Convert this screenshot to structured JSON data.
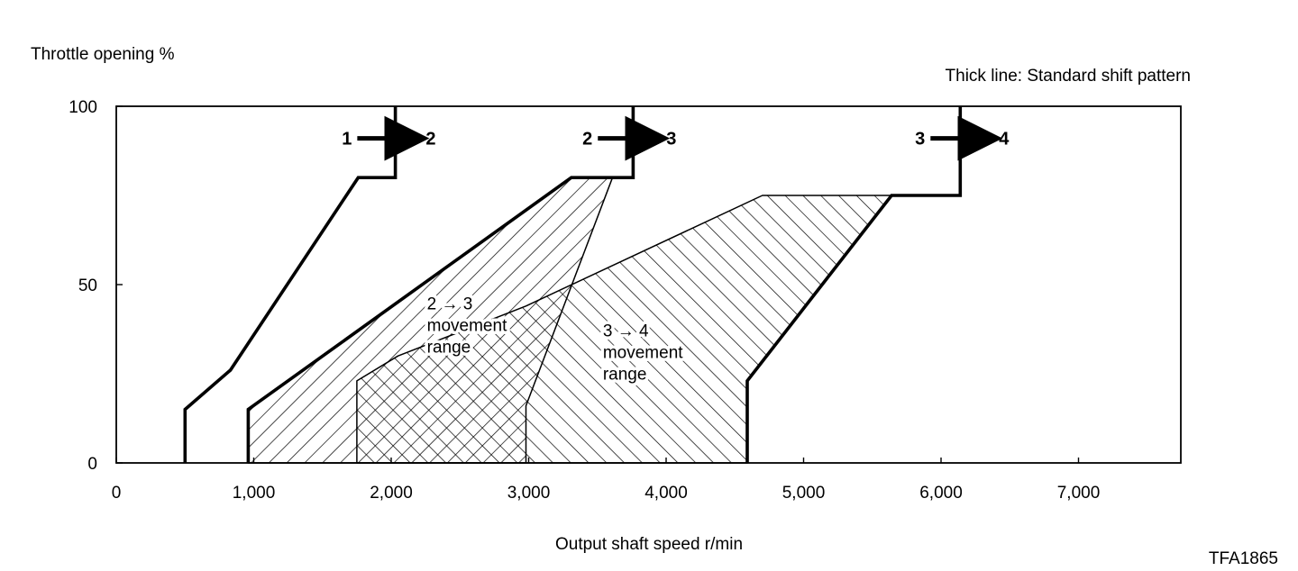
{
  "chart_data": {
    "type": "line",
    "ylabel": "Throttle opening %",
    "xlabel": "Output shaft speed r/min",
    "note": "Thick line: Standard shift pattern",
    "figure_code": "TFA1865",
    "xlim": [
      0,
      7500
    ],
    "ylim": [
      0,
      100
    ],
    "xticks": [
      {
        "value": 0,
        "label": "0"
      },
      {
        "value": 1000,
        "label": "1,000"
      },
      {
        "value": 2000,
        "label": "2,000"
      },
      {
        "value": 3000,
        "label": "3,000"
      },
      {
        "value": 4000,
        "label": "4,000"
      },
      {
        "value": 5000,
        "label": "5,000"
      },
      {
        "value": 6000,
        "label": "6,000"
      },
      {
        "value": 7000,
        "label": "7,000"
      }
    ],
    "yticks": [
      {
        "value": 0,
        "label": "0"
      },
      {
        "value": 50,
        "label": "50"
      },
      {
        "value": 100,
        "label": "100"
      }
    ],
    "series": [
      {
        "id": "shift-1-2",
        "label_from": "1",
        "label_to": "2",
        "label_at": [
          1950,
          91
        ],
        "points": [
          [
            500,
            0
          ],
          [
            500,
            15
          ],
          [
            830,
            26
          ],
          [
            1760,
            80
          ],
          [
            2030,
            80
          ],
          [
            2030,
            100
          ]
        ]
      },
      {
        "id": "shift-2-3",
        "label_from": "2",
        "label_to": "3",
        "label_at": [
          3700,
          91
        ],
        "points": [
          [
            960,
            0
          ],
          [
            960,
            15
          ],
          [
            3310,
            80
          ],
          [
            3760,
            80
          ],
          [
            3760,
            100
          ]
        ]
      },
      {
        "id": "shift-3-4",
        "label_from": "3",
        "label_to": "4",
        "label_at": [
          6120,
          91
        ],
        "points": [
          [
            4590,
            0
          ],
          [
            4590,
            23
          ],
          [
            5640,
            75
          ],
          [
            6140,
            75
          ],
          [
            6140,
            100
          ]
        ]
      }
    ],
    "regions": [
      {
        "id": "range-2-3",
        "label": [
          "2 → 3",
          "movement",
          "range"
        ],
        "label_at": [
          2260,
          43
        ],
        "hatch": "forward",
        "polygon": [
          [
            960,
            0
          ],
          [
            960,
            15
          ],
          [
            3310,
            80
          ],
          [
            3610,
            80
          ],
          [
            2980,
            16
          ],
          [
            2980,
            0
          ]
        ]
      },
      {
        "id": "range-3-4",
        "label": [
          "3 → 4",
          "movement",
          "range"
        ],
        "label_at": [
          3540,
          35.5
        ],
        "hatch": "backward",
        "polygon": [
          [
            1750,
            0
          ],
          [
            1750,
            23
          ],
          [
            2050,
            30
          ],
          [
            2980,
            44
          ],
          [
            4700,
            75
          ],
          [
            5640,
            75
          ],
          [
            4590,
            23
          ],
          [
            4590,
            0
          ]
        ]
      }
    ]
  }
}
